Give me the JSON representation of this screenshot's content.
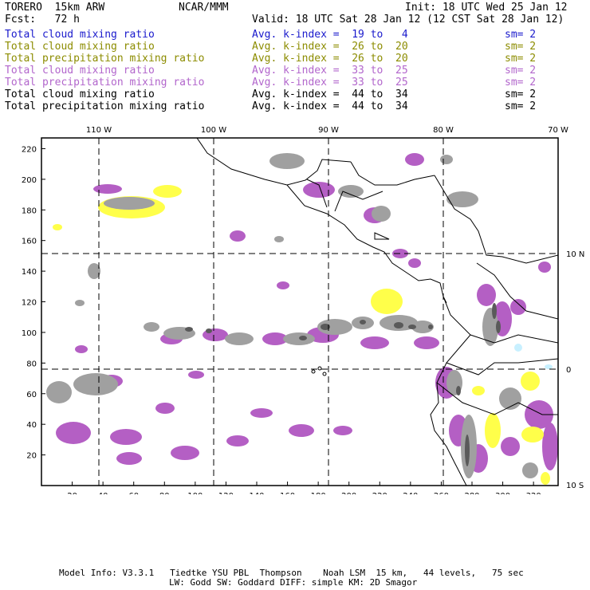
{
  "header": {
    "model": "TORERO  15km ARW",
    "org": "NCAR/MMM",
    "init": "Init: 18 UTC Wed 25 Jan 12",
    "fcst": "Fcst:   72 h",
    "valid": "Valid: 18 UTC Sat 28 Jan 12 (12 CST Sat 28 Jan 12)"
  },
  "legend": [
    {
      "field": "Total cloud mixing ratio",
      "kindex": "Avg. k-index =  19 to   4",
      "sm": "sm= 2",
      "color": "#1a1acc"
    },
    {
      "field": "Total cloud mixing ratio",
      "kindex": "Avg. k-index =  26 to  20",
      "sm": "sm= 2",
      "color": "#8c8c00"
    },
    {
      "field": "Total precipitation mixing ratio",
      "kindex": "Avg. k-index =  26 to  20",
      "sm": "sm= 2",
      "color": "#8c8c00"
    },
    {
      "field": "Total cloud mixing ratio",
      "kindex": "Avg. k-index =  33 to  25",
      "sm": "sm= 2",
      "color": "#b266cc"
    },
    {
      "field": "Total precipitation mixing ratio",
      "kindex": "Avg. k-index =  33 to  25",
      "sm": "sm= 2",
      "color": "#b266cc"
    },
    {
      "field": "Total cloud mixing ratio",
      "kindex": "Avg. k-index =  44 to  34",
      "sm": "sm= 2",
      "color": "#000000"
    },
    {
      "field": "Total precipitation mixing ratio",
      "kindex": "Avg. k-index =  44 to  34",
      "sm": "sm= 2",
      "color": "#000000"
    }
  ],
  "axes": {
    "x_ticks": [
      "20",
      "40",
      "60",
      "80",
      "100",
      "120",
      "140",
      "160",
      "180",
      "200",
      "220",
      "240",
      "260",
      "280",
      "300",
      "320"
    ],
    "y_ticks": [
      "20",
      "40",
      "60",
      "80",
      "100",
      "120",
      "140",
      "160",
      "180",
      "200",
      "220"
    ],
    "lon_labels": [
      "110 W",
      "100 W",
      "90 W",
      "80 W",
      "70 W"
    ],
    "lat_labels": [
      "10 N",
      "0",
      "10 S"
    ]
  },
  "colors": {
    "gray": "#a0a0a0",
    "dark": "#5a5a5a",
    "purple": "#b45fc4",
    "yellow": "#ffff4a",
    "cyan": "#c8f0ff"
  },
  "footer": {
    "line1": "Model Info: V3.3.1   Tiedtke YSU PBL  Thompson    Noah LSM  15 km,   44 levels,   75 sec",
    "line2": "LW: Godd SW: Goddard DIFF: simple KM: 2D Smagor"
  }
}
